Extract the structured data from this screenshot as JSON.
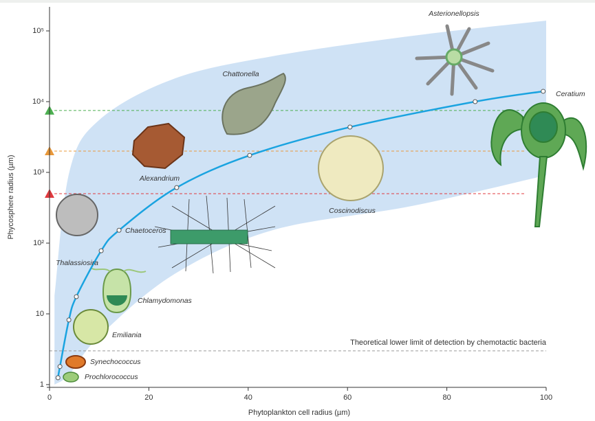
{
  "chart_data": {
    "type": "line",
    "x_label": "Phytoplankton cell radius (µm)",
    "y_label": "Phycosphere radius (µm)",
    "log_y": true,
    "xlim": [
      0,
      100
    ],
    "ylim": [
      1,
      200000
    ],
    "xticks": [
      0,
      20,
      40,
      60,
      80,
      100
    ],
    "yticks": [
      1,
      10,
      {
        "value": 100,
        "label": "10²"
      },
      {
        "value": 1000,
        "label": "10³"
      },
      {
        "value": 10000,
        "label": "10⁴"
      },
      {
        "value": 100000,
        "label": "10⁵"
      }
    ],
    "x": [
      1.7,
      2.1,
      3.9,
      5.4,
      10.4,
      14,
      25.6,
      40.3,
      60.5,
      85.7,
      99.4
    ],
    "values": [
      1.25,
      1.8,
      8.2,
      17.5,
      78,
      152,
      610,
      1740,
      4370,
      10000,
      14000
    ],
    "color": "#1aa3e0",
    "band": {
      "x": [
        1,
        4,
        10,
        25,
        45,
        73,
        100
      ],
      "upper": [
        18,
        1020,
        5500,
        21000,
        44000,
        85000,
        140000
      ],
      "lower": [
        1,
        1.4,
        4.8,
        36,
        153,
        335,
        910
      ],
      "color": "#cfe2f5"
    },
    "reference_lines": [
      {
        "value": 7500,
        "color": "#4caf50"
      },
      {
        "value": 2000,
        "color": "#e8983a"
      },
      {
        "value": 500,
        "color": "#e0393e"
      }
    ],
    "detection_limit": {
      "value": 3,
      "label": "Theoretical lower limit of detection by chemotactic bacteria"
    },
    "annotations": [
      "Asterionellopsis",
      "Chattonella",
      "Ceratium",
      "Alexandrium",
      "Coscinodiscus",
      "Chaetoceros",
      "Thalassiosira",
      "Chlamydomonas",
      "Emiliania",
      "Synechococcus",
      "Prochlorococcus"
    ]
  }
}
